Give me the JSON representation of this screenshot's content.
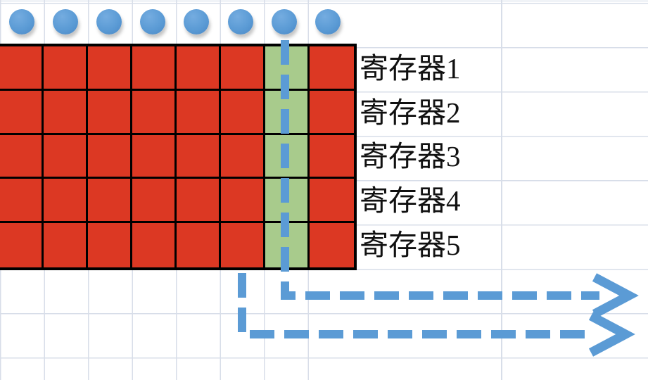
{
  "diagram": {
    "description": "Register shift diagram on a spreadsheet-like canvas: 8x5 grid of red cells with one highlighted green column, blue input dots above each column, and dashed blue elbow arrows exiting to the right",
    "row_labels": [
      "寄存器1",
      "寄存器2",
      "寄存器3",
      "寄存器4",
      "寄存器5"
    ],
    "grid": {
      "columns": 8,
      "rows": 5,
      "highlighted_column_index": 7
    },
    "dots": {
      "count": 8,
      "icon": "circle-dot-icon"
    },
    "connectors": [
      {
        "name": "highlighted-column-arrow",
        "style": "dashed",
        "shape": "elbow-down-right",
        "arrowhead": "open-chevron"
      },
      {
        "name": "lower-arrow",
        "style": "dashed",
        "shape": "elbow-down-right",
        "arrowhead": "open-chevron"
      }
    ]
  },
  "colors": {
    "cell_red": "#DC3823",
    "cell_green": "#A8CB8C",
    "shape_blue": "#5B9BD5",
    "grid_border": "#000000",
    "sheet_gridline": "#D8DEE9",
    "label_text": "#111111",
    "background": "#FFFFFF"
  }
}
